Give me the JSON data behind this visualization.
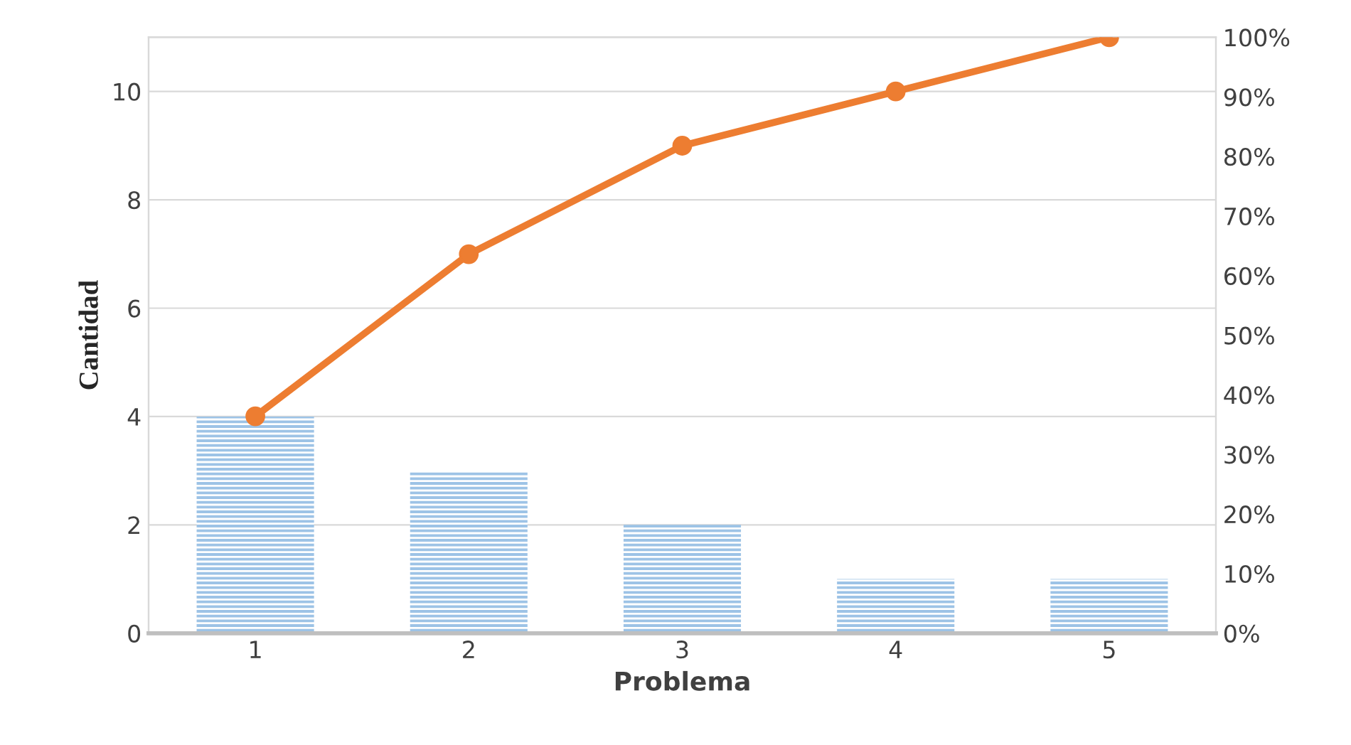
{
  "chart_data": {
    "type": "bar",
    "xlabel": "Problema",
    "ylabel": "Cantidad",
    "categories": [
      "1",
      "2",
      "3",
      "4",
      "5"
    ],
    "series": [
      {
        "color": "#9dc3e6",
        "values": [
          4,
          3,
          2,
          1,
          1
        ]
      },
      {
        "type": "line",
        "axis": "y2",
        "color": "#ed7d31",
        "values": [
          36.4,
          63.6,
          81.8,
          90.9,
          100
        ]
      }
    ],
    "ylim": [
      0,
      11
    ],
    "yticks": [
      0,
      2,
      4,
      6,
      8,
      10
    ],
    "y2lim": [
      0,
      100
    ],
    "y2ticks": [
      {
        "value": 0,
        "label": "0%"
      },
      {
        "value": 10,
        "label": "10%"
      },
      {
        "value": 20,
        "label": "20%"
      },
      {
        "value": 30,
        "label": "30%"
      },
      {
        "value": 40,
        "label": "40%"
      },
      {
        "value": 50,
        "label": "50%"
      },
      {
        "value": 60,
        "label": "60%"
      },
      {
        "value": 70,
        "label": "70%"
      },
      {
        "value": 80,
        "label": "80%"
      },
      {
        "value": 90,
        "label": "90%"
      },
      {
        "value": 100,
        "label": "100%"
      }
    ],
    "grid": "y",
    "marker": "circle",
    "line_style": "solid"
  }
}
